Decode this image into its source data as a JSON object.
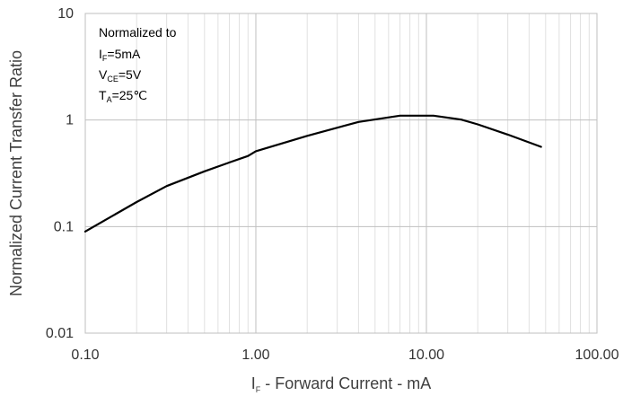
{
  "chart_data": {
    "type": "line",
    "x_scale": "log",
    "y_scale": "log",
    "xlim": [
      0.1,
      100
    ],
    "ylim": [
      0.01,
      10
    ],
    "x_tick_labels": [
      "0.10",
      "1.00",
      "10.00",
      "100.00"
    ],
    "y_tick_labels": [
      "0.01",
      "0.1",
      "1",
      "10"
    ],
    "xlabel": {
      "main": "I",
      "sub": "F",
      "rest": " - Forward Current - mA"
    },
    "ylabel": "Normalized Current Transfer Ratio",
    "grid": {
      "major": true,
      "minor_x": true
    },
    "annotation": {
      "line1": "Normalized to",
      "line2": {
        "main": "I",
        "sub": "F",
        "rest": "=5mA"
      },
      "line3": {
        "main": "V",
        "sub": "CE",
        "rest": "=5V"
      },
      "line4": {
        "main": "T",
        "sub": "A",
        "rest": "=25℃"
      }
    },
    "series": [
      {
        "x": [
          0.1,
          0.2,
          0.3,
          0.5,
          0.7,
          0.9,
          1.0,
          2.0,
          4.0,
          7.0,
          11.0,
          16.0,
          20.0,
          30.0,
          47.0
        ],
        "y": [
          0.09,
          0.17,
          0.24,
          0.33,
          0.4,
          0.46,
          0.51,
          0.71,
          0.96,
          1.1,
          1.1,
          1.01,
          0.91,
          0.73,
          0.56
        ]
      }
    ],
    "line_color": "#000000",
    "grid_color": "#bfbfbf",
    "minor_grid_color": "#e0e0e0"
  }
}
